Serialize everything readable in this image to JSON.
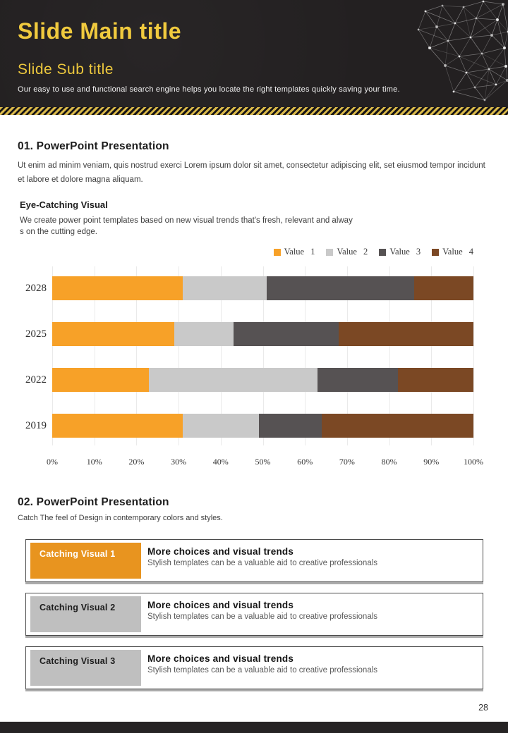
{
  "header": {
    "title": "Slide Main title",
    "subtitle": "Slide Sub title",
    "tagline": "Our easy to use and functional search engine helps you locate the right templates quickly saving your time."
  },
  "section1": {
    "heading": "01. PowerPoint Presentation",
    "body": "Ut enim ad minim veniam, quis nostrud exerci  Lorem ipsum dolor sit amet, consectetur adipiscing elit, set eiusmod tempor incidunt et labore et dolore magna aliquam.",
    "subheading": "Eye-Catching Visual",
    "sub_body_line1": "We create power point templates based on new visual trends that's fresh, relevant and alway",
    "sub_body_line2": "s on the cutting edge."
  },
  "chart_data": {
    "type": "bar",
    "orientation": "horizontal",
    "stacked": true,
    "units": "percent",
    "categories": [
      "2028",
      "2025",
      "2022",
      "2019"
    ],
    "series": [
      {
        "name": "Value 1",
        "color": "#F7A128",
        "values": [
          31,
          29,
          23,
          31
        ]
      },
      {
        "name": "Value 2",
        "color": "#C9C9C9",
        "values": [
          20,
          14,
          40,
          18
        ]
      },
      {
        "name": "Value 3",
        "color": "#565253",
        "values": [
          35,
          25,
          19,
          15
        ]
      },
      {
        "name": "Value 4",
        "color": "#7B4824",
        "values": [
          14,
          32,
          18,
          36
        ]
      }
    ],
    "x_ticks": [
      "0%",
      "10%",
      "20%",
      "30%",
      "40%",
      "50%",
      "60%",
      "70%",
      "80%",
      "90%",
      "100%"
    ],
    "xlim": [
      0,
      100
    ],
    "grid": true,
    "legend_position": "top-right"
  },
  "section2": {
    "heading": "02. PowerPoint Presentation",
    "body": "Catch The feel of Design in contemporary colors and styles.",
    "cards": [
      {
        "label": "Catching Visual 1",
        "title": "More choices and visual trends",
        "description": "Stylish templates can be a valuable aid to creative professionals",
        "label_bg": "#E8941F",
        "label_color": "#FFFFFF"
      },
      {
        "label": "Catching Visual 2",
        "title": "More choices and visual trends",
        "description": "Stylish templates can be a valuable aid to creative professionals",
        "label_bg": "#BFBFBF",
        "label_color": "#1D1D1D"
      },
      {
        "label": "Catching Visual 3",
        "title": "More choices and visual trends",
        "description": "Stylish templates can be a valuable aid to creative professionals",
        "label_bg": "#BFBFBF",
        "label_color": "#1D1D1D"
      }
    ]
  },
  "footer": {
    "page_number": "28"
  },
  "colors": {
    "header_bg": "#232021",
    "accent_yellow": "#F0CA3E",
    "stripe_yellow": "#D9B94A",
    "footer_bg": "#262324"
  }
}
